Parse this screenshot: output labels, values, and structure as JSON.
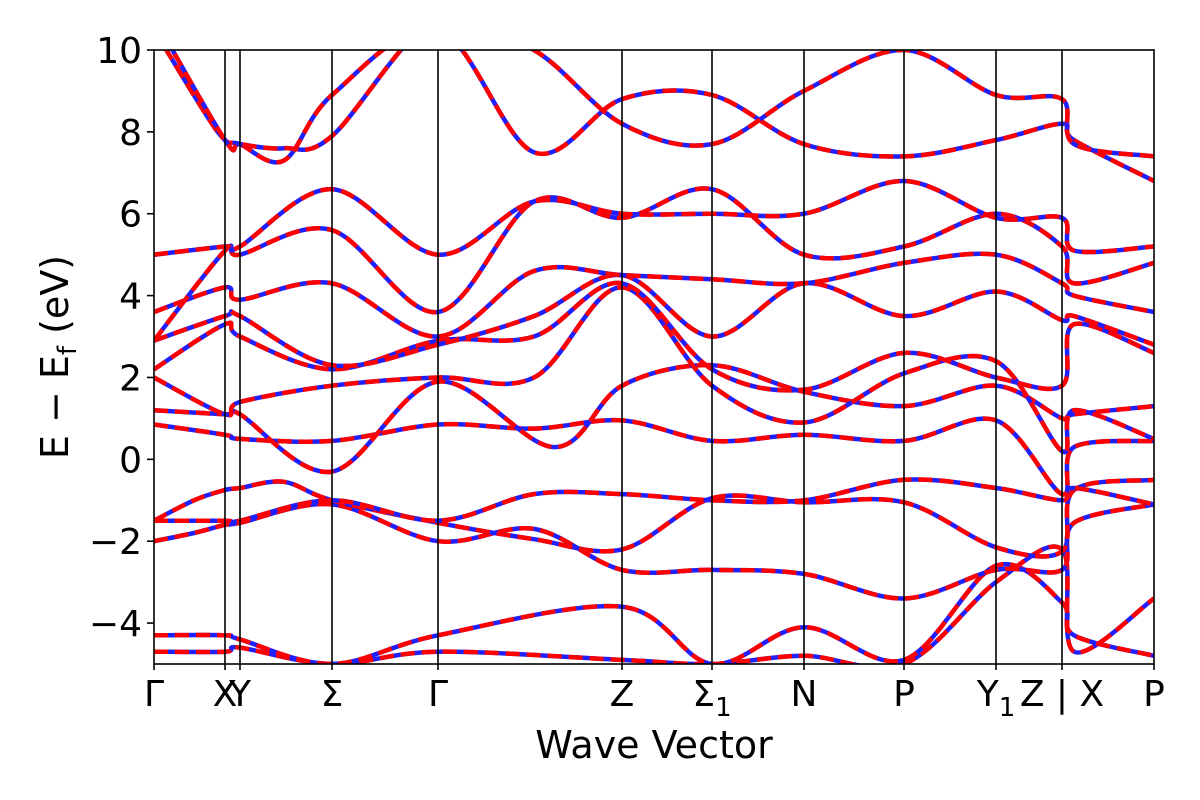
{
  "chart_data": {
    "type": "line",
    "title": "",
    "xlabel": "Wave Vector",
    "ylabel_main": "E − E",
    "ylabel_sub": "f",
    "ylabel_unit": " (eV)",
    "ylim": [
      -5,
      10
    ],
    "xlim": [
      0,
      1
    ],
    "yticks": [
      -4,
      -2,
      0,
      2,
      4,
      6,
      8,
      10
    ],
    "ytick_labels": [
      "−4",
      "−2",
      "0",
      "2",
      "4",
      "6",
      "8",
      "10"
    ],
    "kpoints": [
      {
        "label": "Γ",
        "sub": "",
        "x": 0.0,
        "line": false
      },
      {
        "label": "X",
        "sub": "",
        "x": 0.071,
        "line": true
      },
      {
        "label": "Y",
        "sub": "",
        "x": 0.086,
        "line": true
      },
      {
        "label": "Σ",
        "sub": "",
        "x": 0.178,
        "line": true
      },
      {
        "label": "Γ",
        "sub": "",
        "x": 0.284,
        "line": true
      },
      {
        "label": "Z",
        "sub": "",
        "x": 0.468,
        "line": true
      },
      {
        "label": "Σ",
        "sub": "1",
        "x": 0.558,
        "line": true
      },
      {
        "label": "N",
        "sub": "",
        "x": 0.65,
        "line": true
      },
      {
        "label": "P",
        "sub": "",
        "x": 0.75,
        "line": true
      },
      {
        "label": "Y",
        "sub": "1",
        "x": 0.842,
        "line": true
      },
      {
        "label": "Z | X",
        "sub": "",
        "x": 0.908,
        "line": true
      },
      {
        "label": "P",
        "sub": "",
        "x": 1.0,
        "line": false
      }
    ],
    "series": [
      {
        "x": [
          0,
          0.071,
          0.086,
          0.178,
          0.284,
          0.468,
          0.558,
          0.65,
          0.75,
          0.842,
          0.908,
          0.92,
          1.0
        ],
        "y": [
          -4.7,
          -4.7,
          -4.6,
          -5.0,
          -4.7,
          -4.9,
          -5.0,
          -4.8,
          -5.0,
          -3.0,
          -2.2,
          -4.7,
          -3.4
        ]
      },
      {
        "x": [
          0,
          0.071,
          0.086,
          0.178,
          0.284,
          0.468,
          0.558,
          0.65,
          0.75,
          0.842,
          0.908,
          0.92,
          1.0
        ],
        "y": [
          -4.3,
          -4.3,
          -4.4,
          -5.0,
          -4.3,
          -3.6,
          -5.0,
          -4.1,
          -4.9,
          -2.6,
          -3.5,
          -4.3,
          -4.8
        ]
      },
      {
        "x": [
          0,
          0.04,
          0.071,
          0.086,
          0.178,
          0.284,
          0.38,
          0.468,
          0.558,
          0.65,
          0.75,
          0.842,
          0.908,
          0.92,
          1.0
        ],
        "y": [
          -2.0,
          -1.8,
          -1.6,
          -1.55,
          -1.1,
          -2.0,
          -1.7,
          -2.7,
          -2.7,
          -2.8,
          -3.4,
          -2.7,
          -2.7,
          -1.55,
          -1.1
        ]
      },
      {
        "x": [
          0,
          0.04,
          0.071,
          0.086,
          0.13,
          0.178,
          0.284,
          0.38,
          0.468,
          0.558,
          0.65,
          0.75,
          0.842,
          0.908,
          0.92,
          1.0
        ],
        "y": [
          -1.5,
          -1.0,
          -0.75,
          -0.7,
          -0.55,
          -1.0,
          -1.55,
          -1.95,
          -2.2,
          -0.95,
          -1.05,
          -1.05,
          -2.15,
          -2.25,
          -0.75,
          -0.5
        ]
      },
      {
        "x": [
          0,
          0.071,
          0.086,
          0.178,
          0.284,
          0.38,
          0.468,
          0.558,
          0.65,
          0.75,
          0.842,
          0.908,
          0.92,
          1.0
        ],
        "y": [
          -1.5,
          -1.5,
          -1.5,
          -1.0,
          -1.5,
          -0.85,
          -0.85,
          -1.0,
          -1.0,
          -0.5,
          -0.7,
          -1.0,
          -0.7,
          -1.1
        ]
      },
      {
        "x": [
          0,
          0.071,
          0.086,
          0.178,
          0.284,
          0.38,
          0.468,
          0.558,
          0.65,
          0.75,
          0.842,
          0.908,
          0.92,
          1.0
        ],
        "y": [
          0.85,
          0.6,
          0.5,
          0.45,
          0.85,
          0.75,
          0.95,
          0.45,
          0.6,
          0.45,
          0.95,
          -0.85,
          0.3,
          0.45
        ]
      },
      {
        "x": [
          0,
          0.071,
          0.086,
          0.178,
          0.284,
          0.4,
          0.468,
          0.558,
          0.65,
          0.75,
          0.842,
          0.908,
          0.92,
          1.0
        ],
        "y": [
          1.2,
          1.1,
          1.1,
          -0.3,
          1.9,
          0.3,
          1.8,
          2.3,
          1.65,
          1.3,
          1.8,
          1.0,
          1.1,
          1.3
        ]
      },
      {
        "x": [
          0,
          0.071,
          0.086,
          0.178,
          0.284,
          0.38,
          0.468,
          0.558,
          0.65,
          0.75,
          0.842,
          0.908,
          0.92,
          1.0
        ],
        "y": [
          2.0,
          1.1,
          1.4,
          1.8,
          2.0,
          2.0,
          4.2,
          1.8,
          0.9,
          2.1,
          2.4,
          0.2,
          1.2,
          0.5
        ]
      },
      {
        "x": [
          0,
          0.071,
          0.086,
          0.178,
          0.284,
          0.38,
          0.468,
          0.558,
          0.65,
          0.75,
          0.842,
          0.908,
          0.92,
          1.0
        ],
        "y": [
          2.2,
          3.3,
          3.0,
          2.2,
          2.9,
          3.0,
          4.3,
          2.2,
          1.7,
          2.6,
          2.0,
          1.8,
          3.3,
          2.6
        ]
      },
      {
        "x": [
          0,
          0.071,
          0.086,
          0.178,
          0.284,
          0.38,
          0.468,
          0.558,
          0.65,
          0.75,
          0.842,
          0.908,
          0.92,
          1.0
        ],
        "y": [
          2.9,
          3.5,
          3.5,
          2.3,
          2.8,
          3.5,
          4.5,
          3.0,
          4.3,
          3.5,
          4.1,
          3.4,
          3.5,
          2.8
        ]
      },
      {
        "x": [
          0,
          0.071,
          0.086,
          0.178,
          0.284,
          0.38,
          0.468,
          0.558,
          0.65,
          0.75,
          0.842,
          0.908,
          0.92,
          1.0
        ],
        "y": [
          3.6,
          4.2,
          3.9,
          4.3,
          3.0,
          4.6,
          4.5,
          4.4,
          4.3,
          4.8,
          5.0,
          4.3,
          4.0,
          3.6
        ]
      },
      {
        "x": [
          0,
          0.071,
          0.086,
          0.178,
          0.284,
          0.38,
          0.468,
          0.558,
          0.65,
          0.75,
          0.842,
          0.908,
          0.92,
          1.0
        ],
        "y": [
          2.9,
          5.1,
          5.0,
          5.6,
          3.6,
          6.3,
          5.9,
          6.6,
          5.0,
          5.2,
          6.0,
          5.2,
          4.3,
          4.8
        ]
      },
      {
        "x": [
          0,
          0.071,
          0.086,
          0.178,
          0.284,
          0.38,
          0.468,
          0.558,
          0.65,
          0.75,
          0.842,
          0.908,
          0.92,
          1.0
        ],
        "y": [
          5.0,
          5.2,
          5.2,
          6.6,
          5.0,
          6.3,
          6.0,
          6.0,
          6.0,
          6.8,
          5.9,
          5.9,
          5.1,
          5.2
        ]
      },
      {
        "x": [
          0,
          0.05,
          0.071,
          0.086,
          0.13,
          0.178,
          0.284,
          0.38,
          0.468,
          0.558,
          0.65,
          0.75,
          0.842,
          0.908,
          0.92,
          1.0
        ],
        "y": [
          10.5,
          8.5,
          7.8,
          7.7,
          7.3,
          8.9,
          10.5,
          7.5,
          8.8,
          8.9,
          7.7,
          7.4,
          7.8,
          8.2,
          7.8,
          6.8
        ]
      },
      {
        "x": [
          0,
          0.071,
          0.086,
          0.13,
          0.178,
          0.284,
          0.38,
          0.468,
          0.558,
          0.65,
          0.75,
          0.842,
          0.908,
          0.92,
          1.0
        ],
        "y": [
          10.8,
          7.8,
          7.7,
          7.6,
          7.9,
          10.8,
          10.0,
          8.2,
          7.7,
          9.0,
          10.0,
          8.9,
          8.8,
          7.7,
          7.4
        ]
      }
    ]
  }
}
